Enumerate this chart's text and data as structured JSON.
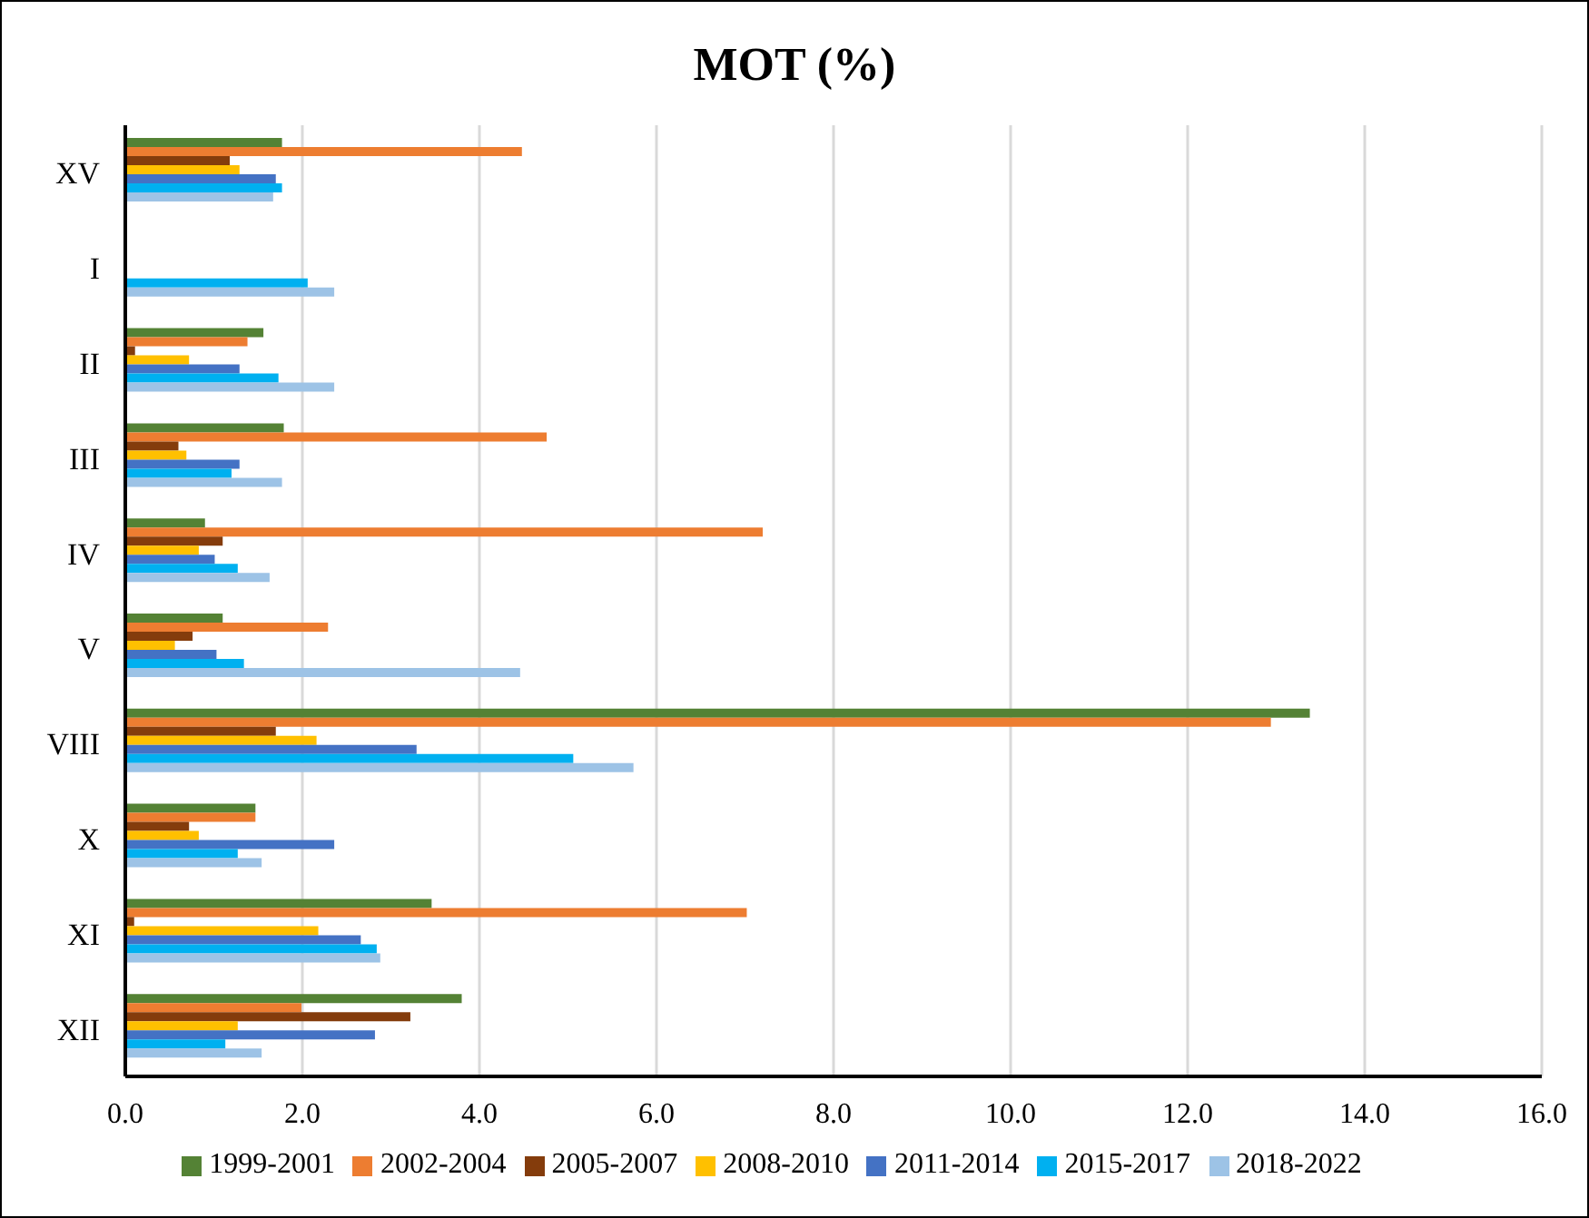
{
  "chart_data": {
    "type": "bar",
    "orientation": "horizontal",
    "title": "MOT (%)",
    "categories": [
      "XV",
      "I",
      "II",
      "III",
      "IV",
      "V",
      "VIII",
      "X",
      "XI",
      "XII"
    ],
    "xlim": [
      0,
      16
    ],
    "xticks": [
      {
        "value": 0,
        "label": "0.0"
      },
      {
        "value": 2,
        "label": "2.0"
      },
      {
        "value": 4,
        "label": "4.0"
      },
      {
        "value": 6,
        "label": "6.0"
      },
      {
        "value": 8,
        "label": "8.0"
      },
      {
        "value": 10,
        "label": "10.0"
      },
      {
        "value": 12,
        "label": "12.0"
      },
      {
        "value": 14,
        "label": "14.0"
      },
      {
        "value": 16,
        "label": "16.0"
      }
    ],
    "grid": "x",
    "legend": "bottom",
    "series": [
      {
        "name": "1999-2001",
        "color": "#548235",
        "values": [
          1.77,
          null,
          1.56,
          1.79,
          0.9,
          1.1,
          13.38,
          1.47,
          3.46,
          3.8
        ]
      },
      {
        "name": "2002-2004",
        "color": "#ed7d31",
        "values": [
          4.48,
          null,
          1.38,
          4.76,
          7.2,
          2.29,
          12.94,
          1.47,
          7.02,
          1.99
        ]
      },
      {
        "name": "2005-2007",
        "color": "#843c0c",
        "values": [
          1.18,
          null,
          0.11,
          0.6,
          1.1,
          0.76,
          1.7,
          0.72,
          0.1,
          3.22
        ]
      },
      {
        "name": "2008-2010",
        "color": "#ffc000",
        "values": [
          1.29,
          null,
          0.72,
          0.69,
          0.83,
          0.56,
          2.16,
          0.83,
          2.18,
          1.27
        ]
      },
      {
        "name": "2011-2014",
        "color": "#4472c4",
        "values": [
          1.7,
          null,
          1.29,
          1.29,
          1.01,
          1.03,
          3.29,
          2.36,
          2.66,
          2.82
        ]
      },
      {
        "name": "2015-2017",
        "color": "#00b0f0",
        "values": [
          1.77,
          2.06,
          1.73,
          1.2,
          1.27,
          1.34,
          5.06,
          1.27,
          2.84,
          1.13
        ]
      },
      {
        "name": "2018-2022",
        "color": "#9dc3e6",
        "values": [
          1.67,
          2.36,
          2.36,
          1.77,
          1.63,
          4.46,
          5.74,
          1.54,
          2.88,
          1.54
        ]
      }
    ]
  }
}
